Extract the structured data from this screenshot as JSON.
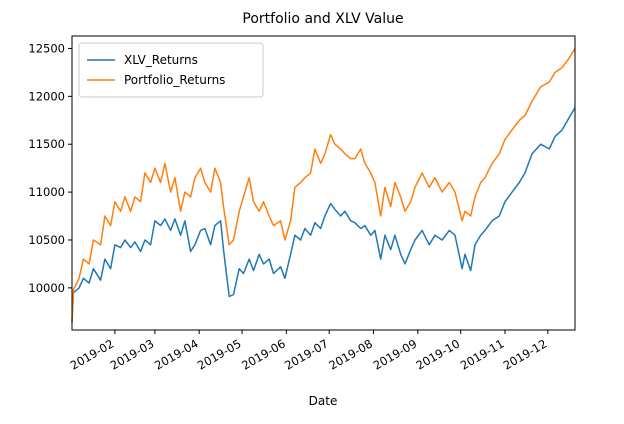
{
  "chart_data": {
    "type": "line",
    "title": "Portfolio and XLV Value",
    "xlabel": "Date",
    "ylabel": "",
    "x_range": [
      "2019-01-02",
      "2019-12-20"
    ],
    "ylim": [
      9560,
      12630
    ],
    "yticks": [
      10000,
      10500,
      11000,
      11500,
      12000,
      12500
    ],
    "xticks": [
      "2019-02",
      "2019-03",
      "2019-04",
      "2019-05",
      "2019-06",
      "2019-07",
      "2019-08",
      "2019-09",
      "2019-10",
      "2019-11",
      "2019-12"
    ],
    "legend_position": "upper left",
    "grid": false,
    "series": [
      {
        "name": "XLV_Returns",
        "color": "#1f77b4",
        "points": [
          [
            "2019-01-02",
            9640
          ],
          [
            "2019-01-03",
            9950
          ],
          [
            "2019-01-07",
            10000
          ],
          [
            "2019-01-10",
            10100
          ],
          [
            "2019-01-14",
            10050
          ],
          [
            "2019-01-17",
            10200
          ],
          [
            "2019-01-22",
            10080
          ],
          [
            "2019-01-25",
            10300
          ],
          [
            "2019-01-29",
            10200
          ],
          [
            "2019-02-01",
            10450
          ],
          [
            "2019-02-05",
            10420
          ],
          [
            "2019-02-08",
            10500
          ],
          [
            "2019-02-12",
            10420
          ],
          [
            "2019-02-15",
            10480
          ],
          [
            "2019-02-19",
            10380
          ],
          [
            "2019-02-22",
            10500
          ],
          [
            "2019-02-26",
            10450
          ],
          [
            "2019-03-01",
            10700
          ],
          [
            "2019-03-05",
            10650
          ],
          [
            "2019-03-08",
            10720
          ],
          [
            "2019-03-12",
            10600
          ],
          [
            "2019-03-15",
            10720
          ],
          [
            "2019-03-19",
            10550
          ],
          [
            "2019-03-22",
            10700
          ],
          [
            "2019-03-26",
            10380
          ],
          [
            "2019-03-29",
            10450
          ],
          [
            "2019-04-02",
            10600
          ],
          [
            "2019-04-05",
            10620
          ],
          [
            "2019-04-09",
            10450
          ],
          [
            "2019-04-12",
            10650
          ],
          [
            "2019-04-16",
            10700
          ],
          [
            "2019-04-18",
            10400
          ],
          [
            "2019-04-22",
            9910
          ],
          [
            "2019-04-25",
            9930
          ],
          [
            "2019-04-29",
            10200
          ],
          [
            "2019-05-02",
            10150
          ],
          [
            "2019-05-06",
            10300
          ],
          [
            "2019-05-09",
            10180
          ],
          [
            "2019-05-13",
            10350
          ],
          [
            "2019-05-16",
            10250
          ],
          [
            "2019-05-20",
            10300
          ],
          [
            "2019-05-23",
            10150
          ],
          [
            "2019-05-28",
            10220
          ],
          [
            "2019-05-31",
            10100
          ],
          [
            "2019-06-04",
            10350
          ],
          [
            "2019-06-07",
            10550
          ],
          [
            "2019-06-11",
            10500
          ],
          [
            "2019-06-14",
            10620
          ],
          [
            "2019-06-18",
            10550
          ],
          [
            "2019-06-21",
            10680
          ],
          [
            "2019-06-25",
            10620
          ],
          [
            "2019-06-28",
            10750
          ],
          [
            "2019-07-02",
            10880
          ],
          [
            "2019-07-05",
            10820
          ],
          [
            "2019-07-09",
            10750
          ],
          [
            "2019-07-12",
            10800
          ],
          [
            "2019-07-16",
            10700
          ],
          [
            "2019-07-19",
            10680
          ],
          [
            "2019-07-23",
            10620
          ],
          [
            "2019-07-26",
            10650
          ],
          [
            "2019-07-30",
            10550
          ],
          [
            "2019-08-02",
            10600
          ],
          [
            "2019-08-06",
            10300
          ],
          [
            "2019-08-09",
            10550
          ],
          [
            "2019-08-13",
            10400
          ],
          [
            "2019-08-16",
            10550
          ],
          [
            "2019-08-20",
            10350
          ],
          [
            "2019-08-23",
            10250
          ],
          [
            "2019-08-27",
            10400
          ],
          [
            "2019-08-30",
            10500
          ],
          [
            "2019-09-04",
            10600
          ],
          [
            "2019-09-09",
            10450
          ],
          [
            "2019-09-13",
            10550
          ],
          [
            "2019-09-18",
            10500
          ],
          [
            "2019-09-23",
            10600
          ],
          [
            "2019-09-27",
            10550
          ],
          [
            "2019-10-02",
            10200
          ],
          [
            "2019-10-04",
            10350
          ],
          [
            "2019-10-08",
            10180
          ],
          [
            "2019-10-11",
            10450
          ],
          [
            "2019-10-15",
            10550
          ],
          [
            "2019-10-18",
            10600
          ],
          [
            "2019-10-23",
            10700
          ],
          [
            "2019-10-28",
            10750
          ],
          [
            "2019-11-01",
            10900
          ],
          [
            "2019-11-06",
            11000
          ],
          [
            "2019-11-11",
            11100
          ],
          [
            "2019-11-15",
            11200
          ],
          [
            "2019-11-20",
            11400
          ],
          [
            "2019-11-26",
            11500
          ],
          [
            "2019-12-02",
            11450
          ],
          [
            "2019-12-06",
            11580
          ],
          [
            "2019-12-11",
            11650
          ],
          [
            "2019-12-16",
            11780
          ],
          [
            "2019-12-20",
            11880
          ]
        ]
      },
      {
        "name": "Portfolio_Returns",
        "color": "#ff7f0e",
        "points": [
          [
            "2019-01-02",
            9650
          ],
          [
            "2019-01-03",
            9980
          ],
          [
            "2019-01-07",
            10100
          ],
          [
            "2019-01-10",
            10300
          ],
          [
            "2019-01-14",
            10250
          ],
          [
            "2019-01-17",
            10500
          ],
          [
            "2019-01-22",
            10450
          ],
          [
            "2019-01-25",
            10750
          ],
          [
            "2019-01-29",
            10650
          ],
          [
            "2019-02-01",
            10900
          ],
          [
            "2019-02-05",
            10800
          ],
          [
            "2019-02-08",
            10950
          ],
          [
            "2019-02-12",
            10800
          ],
          [
            "2019-02-15",
            10950
          ],
          [
            "2019-02-19",
            10900
          ],
          [
            "2019-02-22",
            11200
          ],
          [
            "2019-02-26",
            11100
          ],
          [
            "2019-03-01",
            11250
          ],
          [
            "2019-03-05",
            11100
          ],
          [
            "2019-03-08",
            11300
          ],
          [
            "2019-03-12",
            11000
          ],
          [
            "2019-03-15",
            11150
          ],
          [
            "2019-03-19",
            10800
          ],
          [
            "2019-03-22",
            11000
          ],
          [
            "2019-03-26",
            10950
          ],
          [
            "2019-03-29",
            11150
          ],
          [
            "2019-04-02",
            11250
          ],
          [
            "2019-04-05",
            11100
          ],
          [
            "2019-04-09",
            11000
          ],
          [
            "2019-04-12",
            11250
          ],
          [
            "2019-04-16",
            11100
          ],
          [
            "2019-04-18",
            10850
          ],
          [
            "2019-04-22",
            10450
          ],
          [
            "2019-04-25",
            10500
          ],
          [
            "2019-04-29",
            10800
          ],
          [
            "2019-05-02",
            10950
          ],
          [
            "2019-05-06",
            11150
          ],
          [
            "2019-05-09",
            10900
          ],
          [
            "2019-05-13",
            10800
          ],
          [
            "2019-05-16",
            10900
          ],
          [
            "2019-05-20",
            10750
          ],
          [
            "2019-05-23",
            10650
          ],
          [
            "2019-05-28",
            10700
          ],
          [
            "2019-05-31",
            10500
          ],
          [
            "2019-06-04",
            10700
          ],
          [
            "2019-06-07",
            11050
          ],
          [
            "2019-06-11",
            11100
          ],
          [
            "2019-06-14",
            11150
          ],
          [
            "2019-06-18",
            11200
          ],
          [
            "2019-06-21",
            11450
          ],
          [
            "2019-06-25",
            11300
          ],
          [
            "2019-06-28",
            11400
          ],
          [
            "2019-07-02",
            11600
          ],
          [
            "2019-07-05",
            11500
          ],
          [
            "2019-07-09",
            11450
          ],
          [
            "2019-07-12",
            11400
          ],
          [
            "2019-07-16",
            11350
          ],
          [
            "2019-07-19",
            11350
          ],
          [
            "2019-07-23",
            11450
          ],
          [
            "2019-07-26",
            11300
          ],
          [
            "2019-07-30",
            11200
          ],
          [
            "2019-08-02",
            11100
          ],
          [
            "2019-08-06",
            10750
          ],
          [
            "2019-08-09",
            11050
          ],
          [
            "2019-08-13",
            10850
          ],
          [
            "2019-08-16",
            11100
          ],
          [
            "2019-08-20",
            10950
          ],
          [
            "2019-08-23",
            10800
          ],
          [
            "2019-08-27",
            10900
          ],
          [
            "2019-08-30",
            11050
          ],
          [
            "2019-09-04",
            11200
          ],
          [
            "2019-09-09",
            11050
          ],
          [
            "2019-09-13",
            11150
          ],
          [
            "2019-09-18",
            11000
          ],
          [
            "2019-09-23",
            11100
          ],
          [
            "2019-09-27",
            11000
          ],
          [
            "2019-10-02",
            10700
          ],
          [
            "2019-10-04",
            10800
          ],
          [
            "2019-10-08",
            10750
          ],
          [
            "2019-10-11",
            10950
          ],
          [
            "2019-10-15",
            11100
          ],
          [
            "2019-10-18",
            11150
          ],
          [
            "2019-10-23",
            11300
          ],
          [
            "2019-10-28",
            11400
          ],
          [
            "2019-11-01",
            11550
          ],
          [
            "2019-11-06",
            11650
          ],
          [
            "2019-11-11",
            11750
          ],
          [
            "2019-11-15",
            11800
          ],
          [
            "2019-11-20",
            11950
          ],
          [
            "2019-11-26",
            12100
          ],
          [
            "2019-12-02",
            12150
          ],
          [
            "2019-12-06",
            12250
          ],
          [
            "2019-12-11",
            12300
          ],
          [
            "2019-12-16",
            12400
          ],
          [
            "2019-12-20",
            12500
          ]
        ]
      }
    ]
  }
}
